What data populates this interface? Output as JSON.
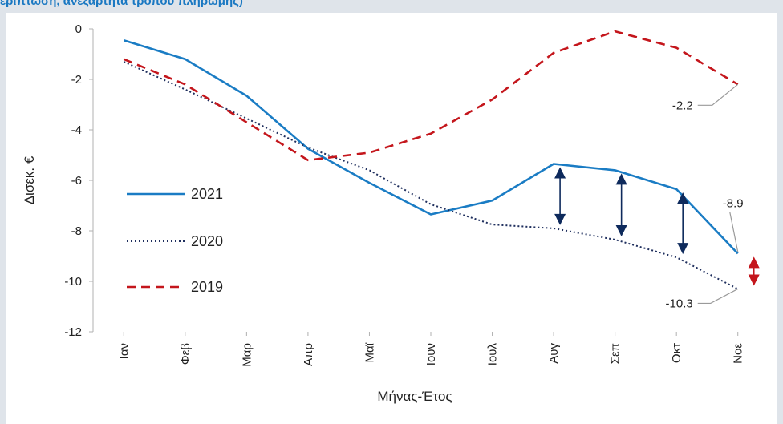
{
  "header": {
    "clipped_title": "ερίπτωση, ανεξάρτητα τρόπου πληρωμής)"
  },
  "chart_data": {
    "type": "line",
    "categories": [
      "Ιαν",
      "Φεβ",
      "Μαρ",
      "Απρ",
      "Μαϊ",
      "Ιουν",
      "Ιουλ",
      "Αυγ",
      "Σεπ",
      "Οκτ",
      "Νοε"
    ],
    "xlabel": "Μήνας-Έτος",
    "ylabel": "Δισεκ. €",
    "ylim": [
      -12,
      0
    ],
    "yticks": [
      0,
      -2,
      -4,
      -6,
      -8,
      -10,
      -12
    ],
    "ytick_labels": [
      "0",
      "-2",
      "-4",
      "-6",
      "-8",
      "-10",
      "-12"
    ],
    "grid": false,
    "legend_position": "left",
    "series": [
      {
        "name": "2021",
        "color": "#1a7cc4",
        "style": "solid",
        "values": [
          -0.45,
          -1.2,
          -2.65,
          -4.75,
          -6.1,
          -7.35,
          -6.8,
          -5.35,
          -5.6,
          -6.35,
          -8.9
        ]
      },
      {
        "name": "2020",
        "color": "#1f2f5e",
        "style": "dotted",
        "values": [
          -1.3,
          -2.4,
          -3.55,
          -4.7,
          -5.6,
          -6.95,
          -7.75,
          -7.9,
          -8.35,
          -9.05,
          -10.3
        ]
      },
      {
        "name": "2019",
        "color": "#c4161c",
        "style": "dashed",
        "values": [
          -1.2,
          -2.2,
          -3.7,
          -5.2,
          -4.9,
          -4.15,
          -2.8,
          -0.95,
          -0.1,
          -0.75,
          -2.2
        ]
      }
    ],
    "annotations": [
      {
        "text": "-2.2",
        "value": -2.2,
        "category": "Νοε"
      },
      {
        "text": "-8.9",
        "value": -8.9,
        "category": "Νοε"
      },
      {
        "text": "-10.3",
        "value": -10.3,
        "category": "Νοε"
      }
    ],
    "difference_arrows": [
      {
        "category": "Αυγ",
        "from": -5.35,
        "to": -7.9,
        "color": "#0e2a5c"
      },
      {
        "category": "Σεπ",
        "from": -5.6,
        "to": -8.35,
        "color": "#0e2a5c"
      },
      {
        "category": "Οκτ",
        "from": -6.35,
        "to": -9.05,
        "color": "#0e2a5c"
      },
      {
        "category": "Νοε",
        "from": -8.9,
        "to": -10.3,
        "color": "#c4161c"
      }
    ],
    "colors": {
      "axis": "#b0b0b0",
      "leader": "#9a9a9a",
      "text": "#222222"
    }
  }
}
